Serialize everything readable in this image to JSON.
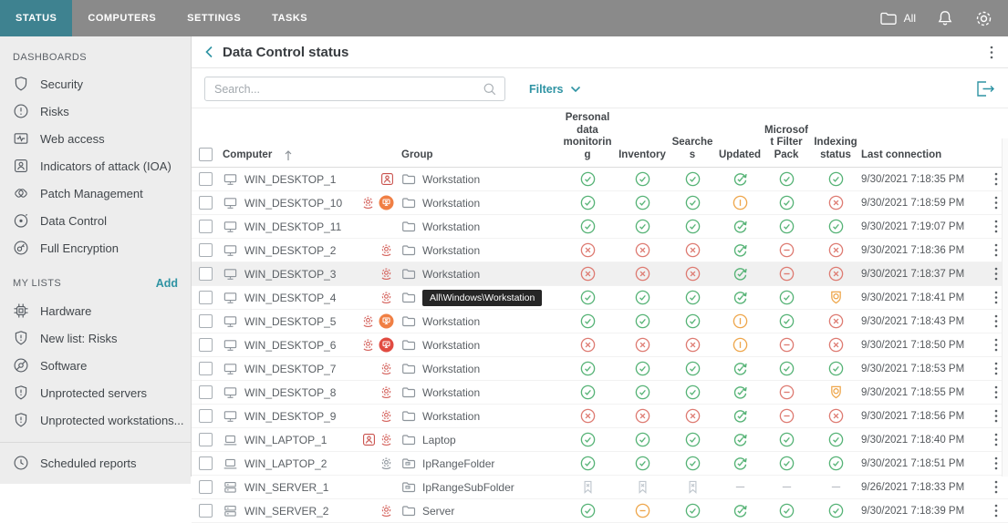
{
  "colors": {
    "accent_teal": "#2e93a3",
    "topbar_gray": "#8a8a8a",
    "active_tab_teal": "#3e8290",
    "status_green": "#56b376",
    "status_red": "#de7b72",
    "status_orange": "#eea64b",
    "alert_red": "#c9504b",
    "row_highlight": "#f0f0f0"
  },
  "topbar": {
    "tabs": [
      {
        "label": "STATUS",
        "active": true
      },
      {
        "label": "COMPUTERS",
        "active": false
      },
      {
        "label": "SETTINGS",
        "active": false
      },
      {
        "label": "TASKS",
        "active": false
      }
    ],
    "scope_label": "All",
    "icons": [
      "folder-icon",
      "bell-icon",
      "gear-icon"
    ]
  },
  "sidebar": {
    "sections": [
      {
        "title": "DASHBOARDS",
        "action": null,
        "items": [
          {
            "label": "Security",
            "icon": "shield",
            "slug": "security"
          },
          {
            "label": "Risks",
            "icon": "alert-circle",
            "slug": "risks"
          },
          {
            "label": "Web access",
            "icon": "web",
            "slug": "web-access"
          },
          {
            "label": "Indicators of attack (IOA)",
            "icon": "ioa",
            "slug": "indicators-of-attack"
          },
          {
            "label": "Patch Management",
            "icon": "patch",
            "slug": "patch-management"
          },
          {
            "label": "Data Control",
            "icon": "data-control",
            "slug": "data-control"
          },
          {
            "label": "Full Encryption",
            "icon": "encryption",
            "slug": "full-encryption"
          }
        ]
      },
      {
        "title": "MY LISTS",
        "action": "Add",
        "items": [
          {
            "label": "Hardware",
            "icon": "chip",
            "slug": "hardware"
          },
          {
            "label": "New list: Risks",
            "icon": "shield-alert",
            "slug": "new-list-risks"
          },
          {
            "label": "Software",
            "icon": "software",
            "slug": "software"
          },
          {
            "label": "Unprotected servers",
            "icon": "shield-alert",
            "slug": "unprotected-servers"
          },
          {
            "label": "Unprotected workstations...",
            "icon": "shield-alert",
            "slug": "unprotected-workstations"
          }
        ]
      }
    ],
    "footer_item": {
      "label": "Scheduled reports",
      "icon": "clock",
      "slug": "scheduled-reports"
    }
  },
  "main": {
    "title": "Data Control status",
    "search_placeholder": "Search...",
    "filters_label": "Filters",
    "table": {
      "columns": [
        {
          "key": "computer",
          "label": "Computer",
          "sorted": "asc"
        },
        {
          "key": "group",
          "label": "Group"
        },
        {
          "key": "pdm",
          "label": "Personal data monitoring"
        },
        {
          "key": "inventory",
          "label": "Inventory"
        },
        {
          "key": "searches",
          "label": "Searches"
        },
        {
          "key": "updated",
          "label": "Updated"
        },
        {
          "key": "msfp",
          "label": "Microsoft Filter Pack"
        },
        {
          "key": "indexing",
          "label": "Indexing status"
        },
        {
          "key": "last_connection",
          "label": "Last connection"
        }
      ],
      "status_legend": {
        "ok": "green check",
        "error": "red cross",
        "disabled": "red minus",
        "warning": "orange minus",
        "pending": "orange bar",
        "updated": "green sync check",
        "in-progress": "orange badge",
        "not-available": "gray bookmark",
        "none": "dash"
      },
      "rows": [
        {
          "computer": "WIN_DESKTOP_1",
          "device": "desktop",
          "alerts": [
            "ioa"
          ],
          "group": {
            "label": "Workstation",
            "icon": "folder"
          },
          "statuses": [
            "ok",
            "ok",
            "ok",
            "updated",
            "ok",
            "ok"
          ],
          "last_connection": "9/30/2021 7:18:35 PM",
          "highlighted": false
        },
        {
          "computer": "WIN_DESKTOP_10",
          "device": "desktop",
          "alerts": [
            "data-control",
            "isolated-warning"
          ],
          "group": {
            "label": "Workstation",
            "icon": "folder"
          },
          "statuses": [
            "ok",
            "ok",
            "ok",
            "pending",
            "ok",
            "error"
          ],
          "last_connection": "9/30/2021 7:18:59 PM",
          "highlighted": false
        },
        {
          "computer": "WIN_DESKTOP_11",
          "device": "desktop",
          "alerts": [],
          "group": {
            "label": "Workstation",
            "icon": "folder"
          },
          "statuses": [
            "ok",
            "ok",
            "ok",
            "updated",
            "ok",
            "ok"
          ],
          "last_connection": "9/30/2021 7:19:07 PM",
          "highlighted": false
        },
        {
          "computer": "WIN_DESKTOP_2",
          "device": "desktop",
          "alerts": [
            "data-control"
          ],
          "group": {
            "label": "Workstation",
            "icon": "folder"
          },
          "statuses": [
            "error",
            "error",
            "error",
            "updated",
            "disabled",
            "error"
          ],
          "last_connection": "9/30/2021 7:18:36 PM",
          "highlighted": false
        },
        {
          "computer": "WIN_DESKTOP_3",
          "device": "desktop",
          "alerts": [
            "data-control"
          ],
          "group": {
            "label": "Workstation",
            "icon": "folder"
          },
          "statuses": [
            "error",
            "error",
            "error",
            "updated",
            "disabled",
            "error"
          ],
          "last_connection": "9/30/2021 7:18:37 PM",
          "highlighted": true
        },
        {
          "computer": "WIN_DESKTOP_4",
          "device": "desktop",
          "alerts": [
            "data-control"
          ],
          "group": {
            "label": "Workstation",
            "icon": "folder",
            "tooltip": "All\\Windows\\Workstation"
          },
          "statuses": [
            "ok",
            "ok",
            "ok",
            "updated",
            "ok",
            "in-progress"
          ],
          "last_connection": "9/30/2021 7:18:41 PM",
          "highlighted": false
        },
        {
          "computer": "WIN_DESKTOP_5",
          "device": "desktop",
          "alerts": [
            "data-control",
            "isolated-warning"
          ],
          "group": {
            "label": "Workstation",
            "icon": "folder"
          },
          "statuses": [
            "ok",
            "ok",
            "ok",
            "pending",
            "ok",
            "error"
          ],
          "last_connection": "9/30/2021 7:18:43 PM",
          "highlighted": false
        },
        {
          "computer": "WIN_DESKTOP_6",
          "device": "desktop",
          "alerts": [
            "data-control",
            "isolated-error"
          ],
          "group": {
            "label": "Workstation",
            "icon": "folder"
          },
          "statuses": [
            "error",
            "error",
            "error",
            "pending",
            "disabled",
            "error"
          ],
          "last_connection": "9/30/2021 7:18:50 PM",
          "highlighted": false
        },
        {
          "computer": "WIN_DESKTOP_7",
          "device": "desktop",
          "alerts": [
            "data-control"
          ],
          "group": {
            "label": "Workstation",
            "icon": "folder"
          },
          "statuses": [
            "ok",
            "ok",
            "ok",
            "updated",
            "ok",
            "ok"
          ],
          "last_connection": "9/30/2021 7:18:53 PM",
          "highlighted": false
        },
        {
          "computer": "WIN_DESKTOP_8",
          "device": "desktop",
          "alerts": [
            "data-control"
          ],
          "group": {
            "label": "Workstation",
            "icon": "folder"
          },
          "statuses": [
            "ok",
            "ok",
            "ok",
            "updated",
            "disabled",
            "in-progress"
          ],
          "last_connection": "9/30/2021 7:18:55 PM",
          "highlighted": false
        },
        {
          "computer": "WIN_DESKTOP_9",
          "device": "desktop",
          "alerts": [
            "data-control"
          ],
          "group": {
            "label": "Workstation",
            "icon": "folder"
          },
          "statuses": [
            "error",
            "error",
            "error",
            "updated",
            "disabled",
            "error"
          ],
          "last_connection": "9/30/2021 7:18:56 PM",
          "highlighted": false
        },
        {
          "computer": "WIN_LAPTOP_1",
          "device": "laptop",
          "alerts": [
            "ioa",
            "data-control"
          ],
          "group": {
            "label": "Laptop",
            "icon": "folder"
          },
          "statuses": [
            "ok",
            "ok",
            "ok",
            "updated",
            "ok",
            "ok"
          ],
          "last_connection": "9/30/2021 7:18:40 PM",
          "highlighted": false
        },
        {
          "computer": "WIN_LAPTOP_2",
          "device": "laptop",
          "alerts": [
            "data-control-gray"
          ],
          "group": {
            "label": "IpRangeFolder",
            "icon": "ip-folder"
          },
          "statuses": [
            "ok",
            "ok",
            "ok",
            "updated",
            "ok",
            "ok"
          ],
          "last_connection": "9/30/2021 7:18:51 PM",
          "highlighted": false
        },
        {
          "computer": "WIN_SERVER_1",
          "device": "server",
          "alerts": [],
          "group": {
            "label": "IpRangeSubFolder",
            "icon": "ip-folder"
          },
          "statuses": [
            "not-available",
            "not-available",
            "not-available",
            "none",
            "none",
            "none"
          ],
          "last_connection": "9/26/2021 7:18:33 PM",
          "highlighted": false
        },
        {
          "computer": "WIN_SERVER_2",
          "device": "server",
          "alerts": [
            "data-control"
          ],
          "group": {
            "label": "Server",
            "icon": "folder"
          },
          "statuses": [
            "ok",
            "warning",
            "ok",
            "updated",
            "ok",
            "ok"
          ],
          "last_connection": "9/30/2021 7:18:39 PM",
          "highlighted": false
        }
      ]
    }
  }
}
